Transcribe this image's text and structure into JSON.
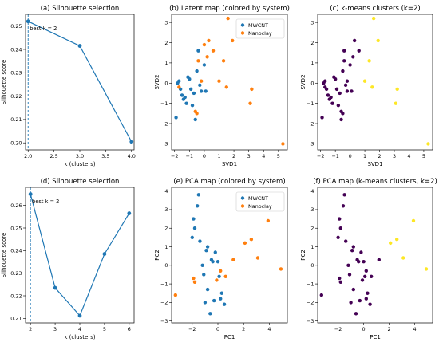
{
  "colors": {
    "line": "#1f77b4",
    "mwcnt": "#1f77b4",
    "nanoclay": "#ff7f0e",
    "cluster0": "#440154",
    "cluster1": "#fde725"
  },
  "chart_data": [
    {
      "id": "a",
      "type": "line",
      "title": "(a) Silhouette selection",
      "xlabel": "k (clusters)",
      "ylabel": "Silhouette score",
      "xlim": [
        1.95,
        4.05
      ],
      "ylim": [
        0.197,
        0.255
      ],
      "xticks": [
        2.0,
        2.5,
        3.0,
        3.5,
        4.0
      ],
      "xticklabels": [
        "2.0",
        "2.5",
        "3.0",
        "3.5",
        "4.0"
      ],
      "yticks": [
        0.2,
        0.21,
        0.22,
        0.23,
        0.24,
        0.25
      ],
      "yticklabels": [
        "0.20",
        "0.21",
        "0.22",
        "0.23",
        "0.24",
        "0.25"
      ],
      "x": [
        2,
        3,
        4
      ],
      "y": [
        0.252,
        0.2415,
        0.2005
      ],
      "best_k": 2,
      "annotation": "best k = 2"
    },
    {
      "id": "b",
      "type": "scatter",
      "title": "(b) Latent map (colored by system)",
      "xlabel": "SVD1",
      "ylabel": "SVD2",
      "xlim": [
        -2.2,
        5.6
      ],
      "ylim": [
        -3.3,
        3.4
      ],
      "xticks": [
        -2,
        -1,
        0,
        1,
        2,
        3,
        4,
        5
      ],
      "xticklabels": [
        "−2",
        "−1",
        "0",
        "1",
        "2",
        "3",
        "4",
        "5"
      ],
      "yticks": [
        -3,
        -2,
        -1,
        0,
        1,
        2,
        3
      ],
      "yticklabels": [
        "−3",
        "−2",
        "−1",
        "0",
        "1",
        "2",
        "3"
      ],
      "legend": "top-right",
      "series": [
        {
          "name": "MWCNT",
          "color_key": "mwcnt",
          "points": [
            [
              -1.9,
              -1.7
            ],
            [
              -1.8,
              0.0
            ],
            [
              -1.7,
              0.1
            ],
            [
              -1.6,
              -0.3
            ],
            [
              -1.5,
              -0.6
            ],
            [
              -1.4,
              -0.8
            ],
            [
              -1.3,
              -0.7
            ],
            [
              -1.2,
              -1.0
            ],
            [
              -1.1,
              0.3
            ],
            [
              -1.0,
              0.2
            ],
            [
              -0.9,
              -0.3
            ],
            [
              -0.8,
              -1.1
            ],
            [
              -0.7,
              -0.5
            ],
            [
              -0.6,
              -1.8
            ],
            [
              -0.5,
              0.6
            ],
            [
              -0.4,
              1.6
            ],
            [
              -0.3,
              -0.1
            ],
            [
              -0.2,
              -0.4
            ],
            [
              0.0,
              0.9
            ],
            [
              0.1,
              -0.4
            ]
          ]
        },
        {
          "name": "Nanoclay",
          "color_key": "nanoclay",
          "points": [
            [
              -1.7,
              -0.2
            ],
            [
              -0.6,
              -1.4
            ],
            [
              -0.5,
              -1.5
            ],
            [
              -0.4,
              1.1
            ],
            [
              -0.2,
              0.1
            ],
            [
              0.0,
              1.9
            ],
            [
              0.2,
              1.3
            ],
            [
              0.3,
              2.1
            ],
            [
              0.6,
              1.6
            ],
            [
              1.0,
              0.1
            ],
            [
              1.3,
              1.1
            ],
            [
              1.5,
              -0.2
            ],
            [
              1.6,
              3.2
            ],
            [
              1.9,
              2.1
            ],
            [
              3.1,
              -1.0
            ],
            [
              3.2,
              -0.3
            ],
            [
              5.3,
              -3.0
            ]
          ]
        }
      ]
    },
    {
      "id": "c",
      "type": "scatter",
      "title": "(c) k-means clusters (k=2)",
      "xlabel": "SVD1",
      "ylabel": "SVD2",
      "xlim": [
        -2.2,
        5.6
      ],
      "ylim": [
        -3.3,
        3.4
      ],
      "xticks": [
        -2,
        -1,
        0,
        1,
        2,
        3,
        4,
        5
      ],
      "xticklabels": [
        "−2",
        "−1",
        "0",
        "1",
        "2",
        "3",
        "4",
        "5"
      ],
      "yticks": [
        -3,
        -2,
        -1,
        0,
        1,
        2,
        3
      ],
      "yticklabels": [
        "−3",
        "−2",
        "−1",
        "0",
        "1",
        "2",
        "3"
      ],
      "series": [
        {
          "color_key": "cluster0",
          "points": [
            [
              -1.9,
              -1.7
            ],
            [
              -1.8,
              0.0
            ],
            [
              -1.7,
              0.1
            ],
            [
              -1.7,
              -0.2
            ],
            [
              -1.6,
              -0.3
            ],
            [
              -1.5,
              -0.6
            ],
            [
              -1.4,
              -0.8
            ],
            [
              -1.3,
              -0.7
            ],
            [
              -1.2,
              -1.0
            ],
            [
              -1.1,
              0.3
            ],
            [
              -1.0,
              0.2
            ],
            [
              -0.9,
              -0.3
            ],
            [
              -0.8,
              -1.1
            ],
            [
              -0.7,
              -0.5
            ],
            [
              -0.6,
              -1.8
            ],
            [
              -0.6,
              -1.4
            ],
            [
              -0.5,
              -1.5
            ],
            [
              -0.5,
              0.6
            ],
            [
              -0.4,
              1.6
            ],
            [
              -0.4,
              1.1
            ],
            [
              -0.3,
              -0.1
            ],
            [
              -0.2,
              -0.4
            ],
            [
              -0.2,
              0.1
            ],
            [
              0.0,
              0.9
            ],
            [
              0.1,
              -0.4
            ],
            [
              0.2,
              1.3
            ],
            [
              0.3,
              2.1
            ],
            [
              0.6,
              1.6
            ]
          ]
        },
        {
          "color_key": "cluster1",
          "points": [
            [
              1.0,
              0.1
            ],
            [
              1.3,
              1.1
            ],
            [
              1.5,
              -0.2
            ],
            [
              1.6,
              3.2
            ],
            [
              1.9,
              2.1
            ],
            [
              3.1,
              -1.0
            ],
            [
              3.2,
              -0.3
            ],
            [
              5.3,
              -3.0
            ]
          ]
        }
      ]
    },
    {
      "id": "d",
      "type": "line",
      "title": "(d) Silhouette selection",
      "xlabel": "k (clusters)",
      "ylabel": "Silhouette score",
      "xlim": [
        1.8,
        6.2
      ],
      "ylim": [
        0.208,
        0.268
      ],
      "xticks": [
        2,
        3,
        4,
        5,
        6
      ],
      "xticklabels": [
        "2",
        "3",
        "4",
        "5",
        "6"
      ],
      "yticks": [
        0.21,
        0.22,
        0.23,
        0.24,
        0.25,
        0.26
      ],
      "yticklabels": [
        "0.21",
        "0.22",
        "0.23",
        "0.24",
        "0.25",
        "0.26"
      ],
      "x": [
        2,
        3,
        4,
        5,
        6
      ],
      "y": [
        0.265,
        0.2235,
        0.2112,
        0.2385,
        0.2565
      ],
      "best_k": 2,
      "annotation": "best k = 2"
    },
    {
      "id": "e",
      "type": "scatter",
      "title": "(e) PCA map (colored by system)",
      "xlabel": "PC1",
      "ylabel": "PC2",
      "xlim": [
        -3.6,
        5.4
      ],
      "ylim": [
        -3.1,
        4.2
      ],
      "xticks": [
        -2,
        0,
        2,
        4
      ],
      "xticklabels": [
        "−2",
        "0",
        "2",
        "4"
      ],
      "yticks": [
        -3,
        -2,
        -1,
        0,
        1,
        2,
        3,
        4
      ],
      "yticklabels": [
        "−3",
        "−2",
        "−1",
        "0",
        "1",
        "2",
        "3",
        "4"
      ],
      "legend": "top-right",
      "series": [
        {
          "name": "MWCNT",
          "color_key": "mwcnt",
          "points": [
            [
              -2.0,
              1.5
            ],
            [
              -1.9,
              2.5
            ],
            [
              -1.8,
              2.0
            ],
            [
              -1.6,
              3.2
            ],
            [
              -1.5,
              3.8
            ],
            [
              -1.4,
              1.3
            ],
            [
              -1.2,
              0.0
            ],
            [
              -1.1,
              -0.5
            ],
            [
              -1.0,
              -2.0
            ],
            [
              -0.9,
              0.8
            ],
            [
              -0.8,
              -1.3
            ],
            [
              -0.8,
              1.0
            ],
            [
              -0.6,
              -2.6
            ],
            [
              -0.5,
              0.3
            ],
            [
              -0.4,
              0.2
            ],
            [
              -0.3,
              -1.9
            ],
            [
              -0.2,
              0.7
            ],
            [
              0.0,
              0.2
            ],
            [
              0.1,
              -0.6
            ],
            [
              0.2,
              -1.8
            ],
            [
              0.3,
              -1.5
            ],
            [
              0.5,
              -2.1
            ]
          ]
        },
        {
          "name": "Nanoclay",
          "color_key": "nanoclay",
          "points": [
            [
              -3.3,
              -1.6
            ],
            [
              -1.9,
              -0.7
            ],
            [
              -1.8,
              -0.9
            ],
            [
              -0.1,
              -0.8
            ],
            [
              0.2,
              -0.3
            ],
            [
              0.6,
              -0.6
            ],
            [
              1.2,
              0.3
            ],
            [
              2.1,
              1.2
            ],
            [
              2.6,
              1.4
            ],
            [
              3.1,
              0.4
            ],
            [
              3.9,
              2.4
            ],
            [
              4.9,
              -0.2
            ]
          ]
        }
      ]
    },
    {
      "id": "f",
      "type": "scatter",
      "title": "(f) PCA map (k-means clusters, k=2)",
      "xlabel": "PC1",
      "ylabel": "PC2",
      "xlim": [
        -3.6,
        5.4
      ],
      "ylim": [
        -3.1,
        4.2
      ],
      "xticks": [
        -2,
        0,
        2,
        4
      ],
      "xticklabels": [
        "−2",
        "0",
        "2",
        "4"
      ],
      "yticks": [
        -3,
        -2,
        -1,
        0,
        1,
        2,
        3,
        4
      ],
      "yticklabels": [
        "−3",
        "−2",
        "−1",
        "0",
        "1",
        "2",
        "3",
        "4"
      ],
      "series": [
        {
          "color_key": "cluster0",
          "points": [
            [
              -3.3,
              -1.6
            ],
            [
              -2.0,
              1.5
            ],
            [
              -1.9,
              2.5
            ],
            [
              -1.9,
              -0.7
            ],
            [
              -1.8,
              2.0
            ],
            [
              -1.8,
              -0.9
            ],
            [
              -1.6,
              3.2
            ],
            [
              -1.5,
              3.8
            ],
            [
              -1.4,
              1.3
            ],
            [
              -1.2,
              0.0
            ],
            [
              -1.1,
              -0.5
            ],
            [
              -1.0,
              -2.0
            ],
            [
              -0.9,
              0.8
            ],
            [
              -0.8,
              -1.3
            ],
            [
              -0.8,
              1.0
            ],
            [
              -0.6,
              -2.6
            ],
            [
              -0.5,
              0.3
            ],
            [
              -0.4,
              0.2
            ],
            [
              -0.3,
              -1.9
            ],
            [
              -0.2,
              0.7
            ],
            [
              -0.1,
              -0.8
            ],
            [
              0.0,
              0.2
            ],
            [
              0.1,
              -0.6
            ],
            [
              0.2,
              -1.8
            ],
            [
              0.2,
              -0.3
            ],
            [
              0.3,
              -1.5
            ],
            [
              0.5,
              -2.1
            ],
            [
              0.6,
              -0.6
            ],
            [
              1.2,
              0.3
            ]
          ]
        },
        {
          "color_key": "cluster1",
          "points": [
            [
              2.1,
              1.2
            ],
            [
              2.6,
              1.4
            ],
            [
              3.1,
              0.4
            ],
            [
              3.9,
              2.4
            ],
            [
              4.9,
              -0.2
            ]
          ]
        }
      ]
    }
  ]
}
